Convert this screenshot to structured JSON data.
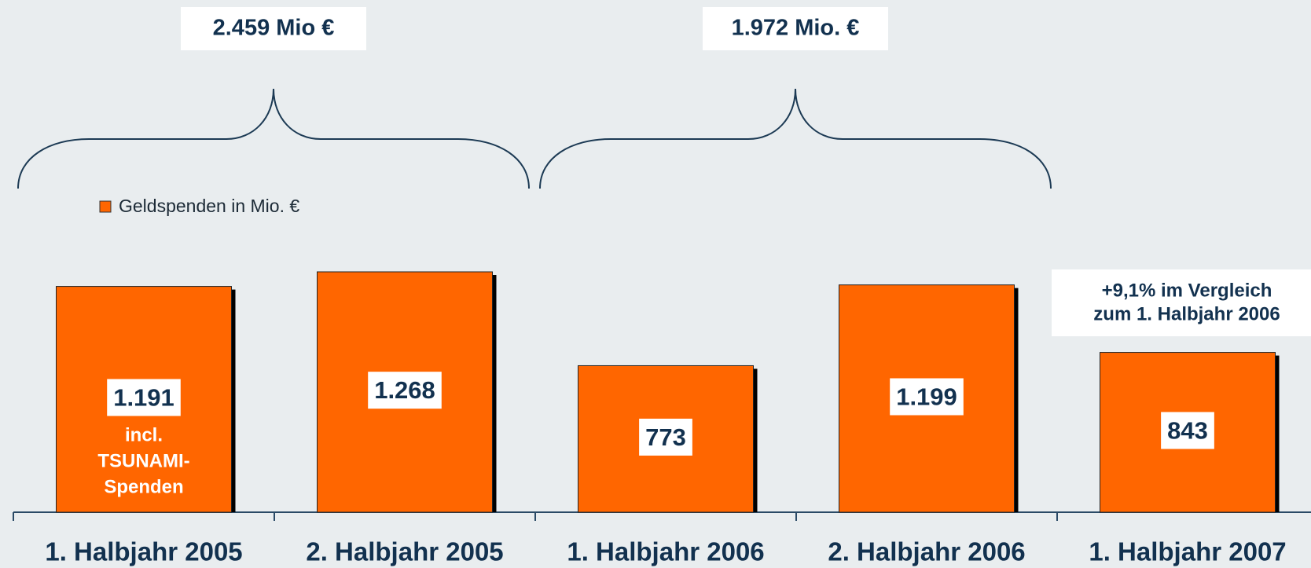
{
  "chart_data": {
    "type": "bar",
    "categories": [
      "1. Halbjahr 2005",
      "2. Halbjahr 2005",
      "1. Halbjahr 2006",
      "2. Halbjahr 2006",
      "1. Halbjahr 2007"
    ],
    "series": [
      {
        "name": "Geldspenden in Mio. €",
        "color": "#ff6600",
        "values": [
          1191,
          1268,
          773,
          1199,
          843
        ],
        "value_labels": [
          "1.191",
          "1.268",
          "773",
          "1.199",
          "843"
        ]
      }
    ],
    "brace_labels": [
      "2.459 Mio €",
      "1.972 Mio. €"
    ],
    "bar_note": [
      "incl.",
      "TSUNAMI-",
      "Spenden"
    ],
    "annotation": [
      "+9,1% im Vergleich",
      "zum 1. Halbjahr 2006"
    ]
  }
}
